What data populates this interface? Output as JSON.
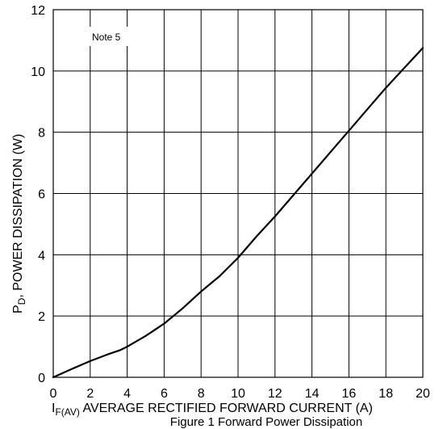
{
  "chart_data": {
    "type": "line",
    "xlabel_main": "I",
    "xlabel_sub": "F(AV)",
    "xlabel_rest": " AVERAGE RECTIFIED FORWARD CURRENT (A)",
    "ylabel_main": "P",
    "ylabel_sub": "D",
    "ylabel_rest": ", POWER DISSIPATION (W)",
    "annotation": "Note 5",
    "caption": "Figure 1 Forward Power Dissipation",
    "xlim": [
      0,
      20
    ],
    "ylim": [
      0,
      12
    ],
    "xticks": [
      "0",
      "2",
      "4",
      "6",
      "8",
      "10",
      "12",
      "14",
      "16",
      "18",
      "20"
    ],
    "yticks": [
      "0",
      "2",
      "4",
      "6",
      "8",
      "10",
      "12"
    ],
    "grid": true,
    "series": [
      {
        "color": "#000000",
        "x": [
          0,
          1,
          2,
          3,
          3.6,
          4,
          5,
          6,
          7,
          8,
          9,
          10,
          11,
          12,
          13,
          14,
          15,
          16,
          17,
          18,
          19,
          20
        ],
        "y": [
          0,
          0.27,
          0.53,
          0.76,
          0.88,
          1.0,
          1.35,
          1.75,
          2.25,
          2.8,
          3.3,
          3.9,
          4.6,
          5.25,
          5.95,
          6.65,
          7.35,
          8.05,
          8.75,
          9.45,
          10.1,
          10.75
        ]
      }
    ]
  }
}
